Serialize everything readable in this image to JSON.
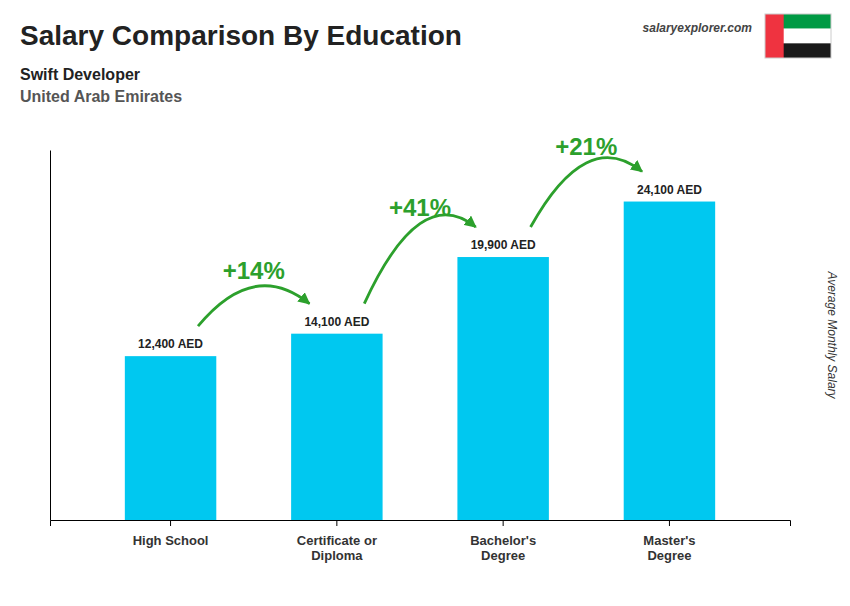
{
  "chart_data": {
    "type": "bar",
    "title": "Salary Comparison By Education",
    "subtitle": [
      "Swift Developer",
      "United Arab Emirates"
    ],
    "ylabel": "Average Monthly Salary",
    "categories": [
      "High School",
      "Certificate or\nDiploma",
      "Bachelor's\nDegree",
      "Master's\nDegree"
    ],
    "values": [
      12400,
      14100,
      19900,
      24100
    ],
    "value_labels": [
      "12,400 AED",
      "14,100 AED",
      "19,900 AED",
      "24,100 AED"
    ],
    "data_labels": true,
    "color": "#00C8F0",
    "ylim": [
      0,
      28000
    ],
    "tick_labels": "x",
    "grid": false,
    "annotations": [
      "+14%",
      "+41%",
      "+21%"
    ],
    "source": "salaryexplorer.com"
  }
}
